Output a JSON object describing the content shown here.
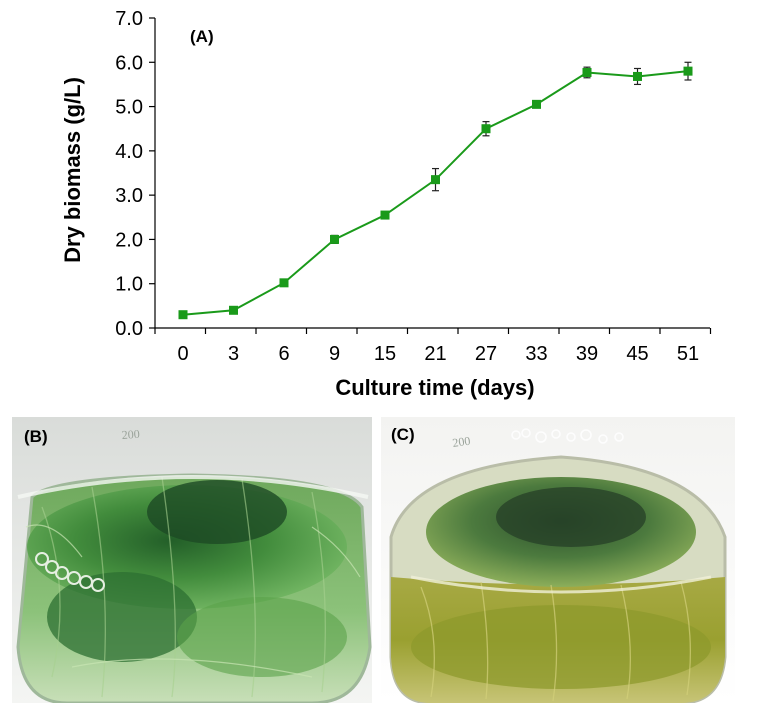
{
  "chart_data": {
    "type": "line",
    "title": "",
    "panel_label": "(A)",
    "xlabel": "Culture time (days)",
    "ylabel": "Dry biomass (g/L)",
    "categories": [
      "0",
      "3",
      "6",
      "9",
      "15",
      "21",
      "27",
      "33",
      "39",
      "45",
      "51"
    ],
    "series": [
      {
        "name": "Dry biomass",
        "values": [
          0.3,
          0.4,
          1.02,
          2.0,
          2.55,
          3.35,
          4.5,
          5.05,
          5.77,
          5.68,
          5.8
        ],
        "errors": [
          0.04,
          0.04,
          0.05,
          0.09,
          0.06,
          0.25,
          0.16,
          0.08,
          0.12,
          0.18,
          0.2
        ],
        "color": "#1a9a1a"
      }
    ],
    "ylim": [
      0.0,
      7.0
    ],
    "yticks": [
      "0.0",
      "1.0",
      "2.0",
      "3.0",
      "4.0",
      "5.0",
      "6.0",
      "7.0"
    ],
    "grid": false,
    "legend": "none"
  },
  "photos": {
    "panel_b": {
      "label": "(B)",
      "scale_text": "200"
    },
    "panel_c": {
      "label": "(C)",
      "scale_text": "200"
    }
  }
}
